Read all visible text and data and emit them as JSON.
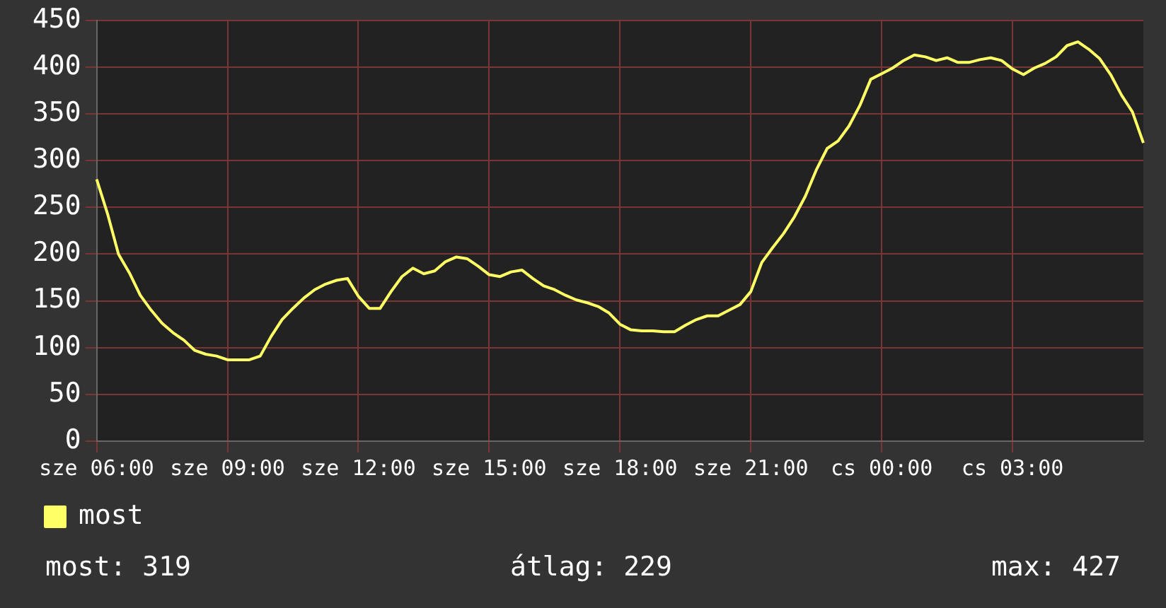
{
  "chart_data": {
    "type": "line",
    "categories": [
      "sze 06:00",
      null,
      null,
      null,
      null,
      null,
      null,
      null,
      null,
      null,
      null,
      null,
      "sze 09:00",
      null,
      null,
      null,
      null,
      null,
      null,
      null,
      null,
      null,
      null,
      null,
      "sze 12:00",
      null,
      null,
      null,
      null,
      null,
      null,
      null,
      null,
      null,
      null,
      null,
      "sze 15:00",
      null,
      null,
      null,
      null,
      null,
      null,
      null,
      null,
      null,
      null,
      null,
      "sze 18:00",
      null,
      null,
      null,
      null,
      null,
      null,
      null,
      null,
      null,
      null,
      null,
      "sze 21:00",
      null,
      null,
      null,
      null,
      null,
      null,
      null,
      null,
      null,
      null,
      null,
      "cs 00:00",
      null,
      null,
      null,
      null,
      null,
      null,
      null,
      null,
      null,
      null,
      null,
      "cs 03:00",
      null,
      null,
      null,
      null,
      null,
      null,
      null,
      null,
      null,
      null,
      null,
      null
    ],
    "series": [
      {
        "name": "most",
        "color": "#ffff66",
        "values": [
          280,
          243,
          200,
          180,
          156,
          140,
          126,
          116,
          108,
          97,
          93,
          91,
          87,
          87,
          87,
          91,
          112,
          130,
          142,
          153,
          162,
          168,
          172,
          174,
          155,
          142,
          142,
          160,
          176,
          185,
          179,
          182,
          192,
          197,
          195,
          187,
          178,
          176,
          181,
          183,
          174,
          166,
          162,
          156,
          151,
          148,
          144,
          137,
          125,
          119,
          118,
          118,
          117,
          117,
          124,
          130,
          134,
          134,
          140,
          146,
          160,
          191,
          207,
          222,
          240,
          262,
          290,
          313,
          321,
          337,
          359,
          387,
          393,
          399,
          407,
          413,
          411,
          407,
          410,
          405,
          405,
          408,
          410,
          407,
          398,
          392,
          399,
          404,
          411,
          423,
          427,
          419,
          409,
          392,
          370,
          352,
          319
        ]
      }
    ],
    "ylim": [
      0,
      450
    ],
    "yticks": [
      0,
      50,
      100,
      150,
      200,
      250,
      300,
      350,
      400,
      450
    ],
    "grid": true,
    "legend": "bottom",
    "marker": "none",
    "line_style": "solid",
    "annotations": [
      "most: 319",
      "átlag: 229",
      "max: 427"
    ]
  }
}
